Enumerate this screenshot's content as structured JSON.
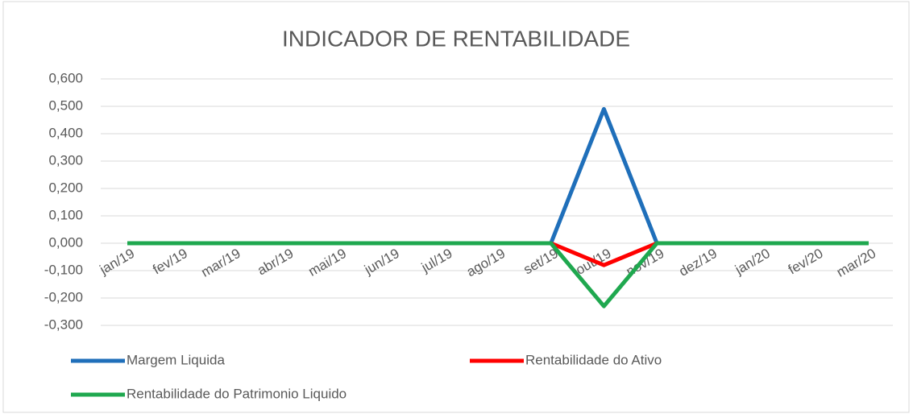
{
  "chart_data": {
    "type": "line",
    "title": "INDICADOR DE RENTABILIDADE",
    "categories": [
      "jan/19",
      "fev/19",
      "mar/19",
      "abr/19",
      "mai/19",
      "jun/19",
      "jul/19",
      "ago/19",
      "set/19",
      "out/19",
      "nov/19",
      "dez/19",
      "jan/20",
      "fev/20",
      "mar/20"
    ],
    "series": [
      {
        "name": "Margem Liquida",
        "color": "#1f6fba",
        "values": [
          0,
          0,
          0,
          0,
          0,
          0,
          0,
          0,
          0,
          0.49,
          0,
          0,
          0,
          0,
          0
        ]
      },
      {
        "name": "Rentabilidade do Ativo",
        "color": "#ff0000",
        "values": [
          0,
          0,
          0,
          0,
          0,
          0,
          0,
          0,
          0,
          -0.08,
          0,
          0,
          0,
          0,
          0
        ]
      },
      {
        "name": "Rentabilidade do Patrimonio Liquido",
        "color": "#1fa84f",
        "values": [
          0,
          0,
          0,
          0,
          0,
          0,
          0,
          0,
          0,
          -0.23,
          0,
          0,
          0,
          0,
          0
        ]
      }
    ],
    "ylim": [
      -0.3,
      0.6
    ],
    "yticks": [
      {
        "value": 0.6,
        "label": "0,600"
      },
      {
        "value": 0.5,
        "label": "0,500"
      },
      {
        "value": 0.4,
        "label": "0,400"
      },
      {
        "value": 0.3,
        "label": "0,300"
      },
      {
        "value": 0.2,
        "label": "0,200"
      },
      {
        "value": 0.1,
        "label": "0,100"
      },
      {
        "value": 0,
        "label": "0,000"
      },
      {
        "value": -0.1,
        "label": "-0,100"
      },
      {
        "value": -0.2,
        "label": "-0,200"
      },
      {
        "value": -0.3,
        "label": "-0,300"
      }
    ],
    "grid": true,
    "legend": "bottom"
  }
}
